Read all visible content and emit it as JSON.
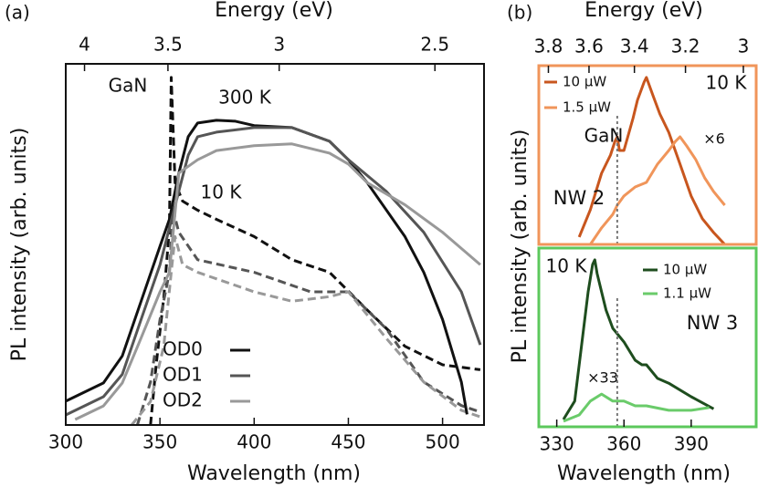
{
  "chart_data": [
    {
      "type": "line",
      "panel_label": "(a)",
      "x_label": "Wavelength (nm)",
      "x2_label": "Energy (eV)",
      "y_label": "PL intensity (arb. units)",
      "xlim": [
        300,
        522
      ],
      "xticks": [
        300,
        350,
        400,
        450,
        500
      ],
      "x2ticks": [
        4,
        3.5,
        3,
        2.5
      ],
      "ylim": [
        1,
        515
      ],
      "log_y": true,
      "series": [
        {
          "name": "OD0",
          "color": "#111111",
          "x": [
            300,
            320,
            330,
            340,
            350,
            355,
            360,
            365,
            370,
            380,
            390,
            400,
            420,
            440,
            450,
            460,
            480,
            490,
            500,
            510,
            513
          ],
          "values": [
            1.51,
            2.07,
            3.3,
            8.5,
            22,
            35,
            78,
            146,
            185,
            194,
            191,
            177,
            171,
            135,
            98,
            66,
            26,
            14,
            6.2,
            2.1,
            1.2
          ]
        },
        {
          "name": "OD1",
          "color": "#555555",
          "x": [
            300,
            320,
            330,
            340,
            350,
            360,
            365,
            370,
            380,
            400,
            420,
            440,
            450,
            470,
            490,
            510,
            520
          ],
          "values": [
            1.19,
            1.63,
            2.4,
            6.2,
            16,
            57,
            106,
            146,
            158,
            171,
            171,
            135,
            98,
            57,
            28,
            10,
            4
          ]
        },
        {
          "name": "OD2",
          "color": "#999999",
          "x": [
            305,
            320,
            330,
            340,
            350,
            355,
            360,
            370,
            380,
            400,
            420,
            440,
            450,
            460,
            480,
            500,
            520
          ],
          "values": [
            1.1,
            1.39,
            2.07,
            4.5,
            10,
            14,
            78,
            98,
            115,
            125,
            129,
            110,
            91,
            66,
            45,
            28,
            16
          ]
        }
      ],
      "dashed_series": [
        {
          "color": "#111111",
          "x": [
            345,
            348,
            352,
            355,
            356,
            358,
            362,
            370,
            380,
            400,
            420,
            440,
            460,
            480,
            500,
            520
          ],
          "values": [
            1,
            2.83,
            9,
            30,
            407,
            66,
            48,
            41,
            35,
            26,
            17.4,
            14,
            7.3,
            3.9,
            2.83,
            2.6
          ]
        },
        {
          "color": "#555555",
          "x": [
            338,
            345,
            350,
            355,
            357,
            360,
            370,
            400,
            430,
            450,
            470,
            490,
            510,
            520
          ],
          "values": [
            1,
            2.1,
            6.2,
            14,
            41,
            28,
            17.4,
            14,
            10,
            10,
            5.3,
            2.1,
            1.4,
            1.25
          ]
        },
        {
          "color": "#999999",
          "x": [
            335,
            345,
            352,
            356,
            358,
            362,
            370,
            400,
            420,
            440,
            450,
            470,
            490,
            510,
            520
          ],
          "values": [
            1,
            1.5,
            3.9,
            14,
            26,
            16,
            14,
            10,
            8.5,
            9.2,
            10,
            4.5,
            2.1,
            1.29,
            1.15
          ]
        }
      ],
      "annotations": [
        "300 K",
        "10 K",
        "GaN"
      ]
    },
    {
      "type": "line",
      "panel_label": "(b)",
      "x2_label": "Energy (eV)",
      "y_label": "PL intensity (arb. units)",
      "xlim": [
        322,
        419
      ],
      "x2ticks": [
        3.8,
        3.6,
        3.4,
        3.2,
        3
      ],
      "ylim": [
        1,
        1000
      ],
      "log_y": true,
      "frame_color": "#f0955a",
      "gan_line": 357,
      "series": [
        {
          "name": "10 µW",
          "color": "#c8561e",
          "x": [
            340,
            345,
            350,
            354,
            356,
            357,
            358,
            360,
            364,
            366,
            369,
            370,
            373,
            376,
            380,
            385,
            390,
            395,
            400,
            405
          ],
          "values": [
            1.33,
            3.8,
            15.6,
            31.6,
            53.8,
            64,
            37.7,
            37.7,
            130,
            263,
            531,
            635,
            313,
            155,
            76,
            22.3,
            6.5,
            2.7,
            1.58,
            1
          ]
        },
        {
          "name": "1.5 µW",
          "color": "#f0955a",
          "x": [
            345,
            350,
            355,
            357,
            360,
            365,
            370,
            375,
            380,
            383,
            385,
            388,
            392,
            396,
            400,
            405
          ],
          "values": [
            1,
            1.89,
            3.2,
            4.55,
            6.5,
            9.2,
            11,
            22.3,
            37.7,
            53.8,
            64,
            45,
            26.6,
            13.1,
            7.7,
            4.55
          ]
        }
      ],
      "annotations": [
        "10 K",
        "GaN",
        "×6",
        "NW 2"
      ]
    },
    {
      "type": "line",
      "x_label": "Wavelength (nm)",
      "xlim": [
        322,
        419
      ],
      "xticks": [
        330,
        360,
        390
      ],
      "ylim": [
        1,
        1000
      ],
      "log_y": true,
      "frame_color": "#5cc85c",
      "gan_line": 357,
      "series": [
        {
          "name": "10 µW",
          "color": "#1e4d1e",
          "x": [
            333,
            338,
            340,
            342,
            344,
            346,
            347,
            348,
            350,
            352,
            355,
            360,
            365,
            368,
            370,
            375,
            380,
            390,
            400
          ],
          "values": [
            1.33,
            2.7,
            11,
            45,
            184,
            531,
            635,
            376,
            184,
            91,
            45,
            26.6,
            13.1,
            11,
            11,
            6.5,
            5.4,
            3.2,
            2.0
          ]
        },
        {
          "name": "1.1 µW",
          "color": "#6acb6a",
          "x": [
            333,
            340,
            345,
            350,
            355,
            360,
            365,
            370,
            380,
            390,
            398
          ],
          "values": [
            1.24,
            1.58,
            2.7,
            3.55,
            2.7,
            2.7,
            2.25,
            2.25,
            1.89,
            1.89,
            2.1
          ]
        }
      ],
      "annotations": [
        "10 K",
        "×33",
        "NW 3"
      ]
    }
  ]
}
